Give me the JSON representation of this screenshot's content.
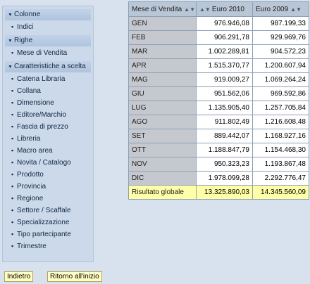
{
  "nav": {
    "sections": [
      {
        "title": "Colonne",
        "items": [
          "Indici"
        ]
      },
      {
        "title": "Righe",
        "items": [
          "Mese di Vendita"
        ]
      },
      {
        "title": "Caratteristiche a scelta",
        "items": [
          "Catena Libraria",
          "Collana",
          "Dimensione",
          "Editore/Marchio",
          "Fascia di prezzo",
          "Libreria",
          "Macro area",
          "Novita / Catalogo",
          "Prodotto",
          "Provincia",
          "Regione",
          "Settore / Scaffale",
          "Specializzazione",
          "Tipo partecipante",
          "Trimestre"
        ]
      }
    ]
  },
  "table": {
    "headers": [
      "Mese di Vendita",
      "Euro 2010",
      "Euro 2009"
    ],
    "rows": [
      [
        "GEN",
        "976.946,08",
        "987.199,33"
      ],
      [
        "FEB",
        "906.291,78",
        "929.969,76"
      ],
      [
        "MAR",
        "1.002.289,81",
        "904.572,23"
      ],
      [
        "APR",
        "1.515.370,77",
        "1.200.607,94"
      ],
      [
        "MAG",
        "919.009,27",
        "1.069.264,24"
      ],
      [
        "GIU",
        "951.562,06",
        "969.592,86"
      ],
      [
        "LUG",
        "1.135.905,40",
        "1.257.705,84"
      ],
      [
        "AGO",
        "911.802,49",
        "1.216.608,48"
      ],
      [
        "SET",
        "889.442,07",
        "1.168.927,16"
      ],
      [
        "OTT",
        "1.188.847,79",
        "1.154.468,30"
      ],
      [
        "NOV",
        "950.323,23",
        "1.193.867,48"
      ],
      [
        "DIC",
        "1.978.099,28",
        "2.292.776,47"
      ]
    ],
    "total": [
      "Risultato globale",
      "13.325.890,03",
      "14.345.560,09"
    ]
  },
  "buttons": {
    "back": "Indietro",
    "home": "Ritorno all'inizio"
  }
}
